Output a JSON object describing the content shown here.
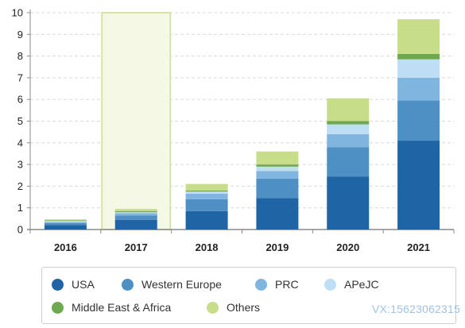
{
  "chart_data": {
    "type": "bar",
    "stacked": true,
    "categories": [
      "2016",
      "2017",
      "2018",
      "2019",
      "2020",
      "2021"
    ],
    "highlighted_category": "2017",
    "ylim": [
      0,
      10
    ],
    "yticks": [
      "0",
      "1",
      "2",
      "3",
      "4",
      "5",
      "6",
      "7",
      "8",
      "9",
      "10"
    ],
    "grid": "horizontal dashed",
    "legend_position": "bottom",
    "series": [
      {
        "name": "USA",
        "color": "#1f65a6",
        "values": [
          0.2,
          0.45,
          0.85,
          1.45,
          2.45,
          4.1
        ]
      },
      {
        "name": "Western Europe",
        "color": "#4e8fc4",
        "values": [
          0.1,
          0.2,
          0.55,
          0.9,
          1.35,
          1.85
        ]
      },
      {
        "name": "PRC",
        "color": "#80b5e0",
        "values": [
          0.05,
          0.1,
          0.25,
          0.35,
          0.6,
          1.05
        ]
      },
      {
        "name": "APeJC",
        "color": "#bedef5",
        "values": [
          0.05,
          0.05,
          0.1,
          0.2,
          0.45,
          0.85
        ]
      },
      {
        "name": "Middle East & Africa",
        "color": "#6ea951",
        "values": [
          0.03,
          0.05,
          0.05,
          0.1,
          0.15,
          0.25
        ]
      },
      {
        "name": "Others",
        "color": "#c8dd8a",
        "values": [
          0.04,
          0.1,
          0.3,
          0.6,
          1.05,
          1.6
        ]
      }
    ]
  },
  "legend": [
    {
      "label": "USA",
      "icon": "circle",
      "color": "#1f65a6"
    },
    {
      "label": "Western Europe",
      "icon": "circle",
      "color": "#4e8fc4"
    },
    {
      "label": "PRC",
      "icon": "circle",
      "color": "#80b5e0"
    },
    {
      "label": "APeJC",
      "icon": "circle",
      "color": "#bedef5"
    },
    {
      "label": "Middle East & Africa",
      "icon": "circle",
      "color": "#6ea951"
    },
    {
      "label": "Others",
      "icon": "circle",
      "color": "#c8dd8a"
    }
  ],
  "watermark": "VX:15623062315"
}
